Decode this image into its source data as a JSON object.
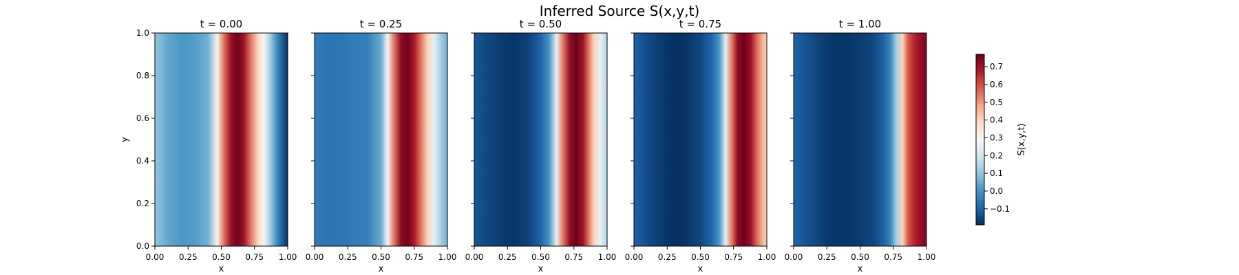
{
  "chart_data": {
    "type": "heatmap",
    "title": "Inferred Source S(x,y,t)",
    "xlabel": "x",
    "ylabel": "y",
    "xlim": [
      0,
      1
    ],
    "ylim": [
      0,
      1
    ],
    "x_ticks": [
      "0.00",
      "0.25",
      "0.50",
      "0.75",
      "1.00"
    ],
    "y_ticks": [
      "0.0",
      "0.2",
      "0.4",
      "0.6",
      "0.8",
      "1.0"
    ],
    "colormap": "RdBu_r",
    "colorbar": {
      "label": "S(x,y,t)",
      "range": [
        -0.19,
        0.77
      ],
      "ticks": [
        "−0.1",
        "0.0",
        "0.1",
        "0.2",
        "0.3",
        "0.4",
        "0.5",
        "0.6",
        "0.7"
      ]
    },
    "panels": [
      {
        "label": "t = 0.00",
        "t": 0.0,
        "profile_x": [
          0.0,
          0.1,
          0.2,
          0.3,
          0.4,
          0.47,
          0.52,
          0.57,
          0.62,
          0.67,
          0.72,
          0.78,
          0.82,
          0.86,
          0.92,
          1.0
        ],
        "profile_s": [
          0.1,
          0.04,
          0.01,
          0.02,
          0.06,
          0.3,
          0.55,
          0.7,
          0.76,
          0.7,
          0.55,
          0.38,
          0.3,
          0.15,
          -0.02,
          -0.18
        ]
      },
      {
        "label": "t = 0.25",
        "t": 0.25,
        "profile_x": [
          0.0,
          0.1,
          0.2,
          0.3,
          0.4,
          0.5,
          0.55,
          0.6,
          0.65,
          0.7,
          0.75,
          0.8,
          0.85,
          0.9,
          0.94,
          1.0
        ],
        "profile_s": [
          -0.05,
          -0.06,
          -0.06,
          -0.05,
          -0.04,
          0.05,
          0.28,
          0.55,
          0.72,
          0.76,
          0.68,
          0.55,
          0.4,
          0.25,
          0.15,
          0.05
        ]
      },
      {
        "label": "t = 0.50",
        "t": 0.5,
        "profile_x": [
          0.0,
          0.1,
          0.2,
          0.3,
          0.4,
          0.5,
          0.56,
          0.62,
          0.67,
          0.72,
          0.77,
          0.82,
          0.86,
          0.9,
          0.95,
          1.0
        ],
        "profile_s": [
          -0.12,
          -0.15,
          -0.17,
          -0.18,
          -0.16,
          -0.1,
          0.0,
          0.25,
          0.55,
          0.72,
          0.76,
          0.7,
          0.55,
          0.4,
          0.25,
          0.15
        ]
      },
      {
        "label": "t = 0.75",
        "t": 0.75,
        "profile_x": [
          0.0,
          0.1,
          0.2,
          0.3,
          0.4,
          0.5,
          0.58,
          0.64,
          0.69,
          0.74,
          0.78,
          0.83,
          0.88,
          0.93,
          0.97,
          1.0
        ],
        "profile_s": [
          -0.1,
          -0.14,
          -0.17,
          -0.19,
          -0.18,
          -0.15,
          -0.1,
          0.0,
          0.25,
          0.55,
          0.72,
          0.76,
          0.7,
          0.55,
          0.45,
          0.4
        ]
      },
      {
        "label": "t = 1.00",
        "t": 1.0,
        "profile_x": [
          0.0,
          0.1,
          0.2,
          0.3,
          0.4,
          0.5,
          0.6,
          0.68,
          0.73,
          0.77,
          0.82,
          0.86,
          0.9,
          0.94,
          0.97,
          1.0
        ],
        "profile_s": [
          -0.1,
          -0.13,
          -0.16,
          -0.18,
          -0.18,
          -0.17,
          -0.15,
          -0.1,
          -0.02,
          0.12,
          0.4,
          0.58,
          0.65,
          0.7,
          0.72,
          0.74
        ]
      }
    ]
  }
}
